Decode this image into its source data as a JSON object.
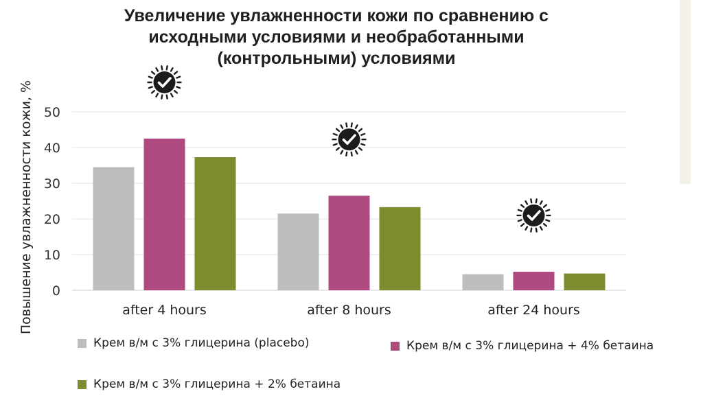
{
  "chart_data": {
    "type": "bar",
    "title": "Увеличение увлажненности кожи по сравнению с исходными условиями и необработанными (контрольными) условиями",
    "title_lines": [
      "Увеличение увлажненности кожи по сравнению с",
      "исходными условиями и необработанными",
      "(контрольными) условиями"
    ],
    "xlabel": "",
    "ylabel": "Повышение увлажненности кожи, %",
    "ylim": [
      0,
      50
    ],
    "yticks": [
      0,
      10,
      20,
      30,
      40,
      50
    ],
    "grid": true,
    "categories": [
      "after 4 hours",
      "after 8 hours",
      "after 24 hours"
    ],
    "series": [
      {
        "name": "Крем в/м с 3% глицерина (placebo)",
        "color": "#bdbdbd",
        "values": [
          34.5,
          21.5,
          4.5
        ]
      },
      {
        "name": "Крем в/м с 3% глицерина + 4% бетаина",
        "color": "#b04b82",
        "values": [
          42.5,
          26.5,
          5.2
        ]
      },
      {
        "name": "Крем в/м с 3% глицерина + 2% бетаина",
        "color": "#7e8b2e",
        "values": [
          37.3,
          23.3,
          4.7
        ]
      }
    ],
    "annotations": [
      {
        "category": "after 4 hours",
        "icon": "check-badge-icon"
      },
      {
        "category": "after 8 hours",
        "icon": "check-badge-icon"
      },
      {
        "category": "after 24 hours",
        "icon": "check-badge-icon"
      }
    ],
    "legend_placement": "bottom"
  }
}
